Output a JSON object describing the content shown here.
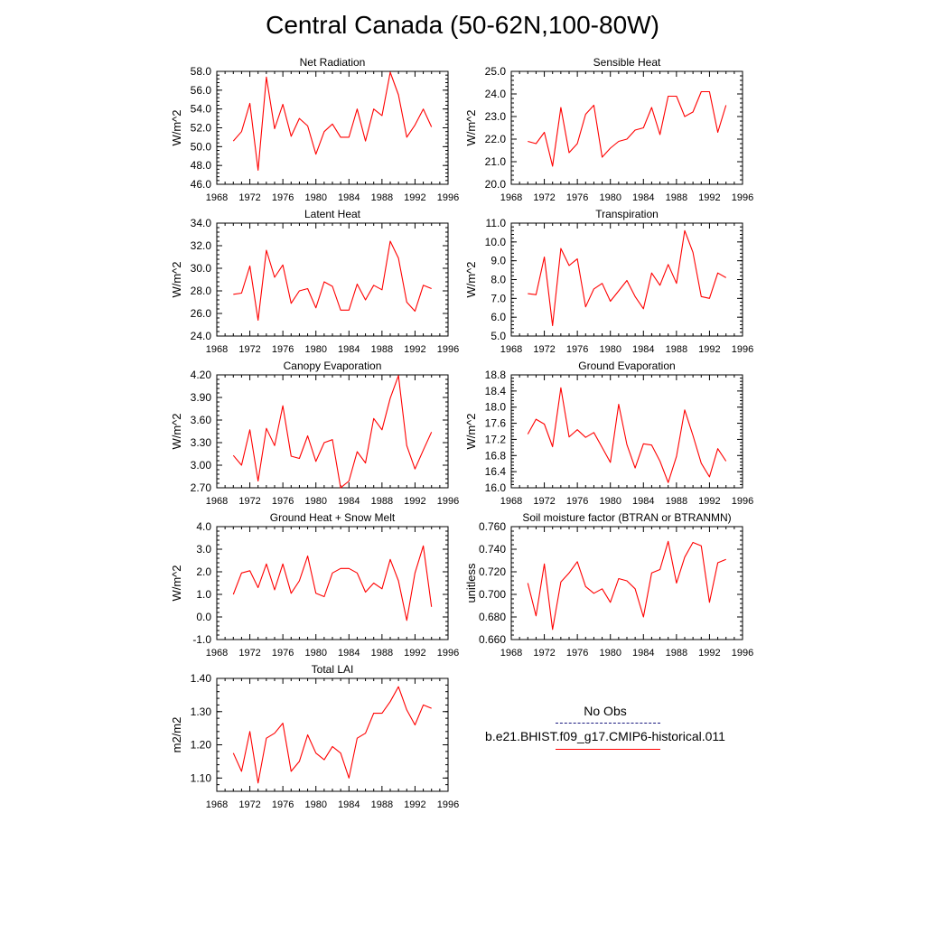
{
  "title": "Central Canada (50-62N,100-80W)",
  "legend": {
    "entries": [
      {
        "label": "No Obs",
        "color": "#1a1a80",
        "style": "dashed"
      },
      {
        "label": "b.e21.BHIST.f09_g17.CMIP6-historical.011",
        "color": "#ff0000",
        "style": "solid"
      }
    ]
  },
  "chart_data": [
    {
      "type": "line",
      "title": "Net Radiation",
      "ylabel": "W/m^2",
      "xlim": [
        1968,
        1996
      ],
      "xticks": [
        "1968",
        "1972",
        "1976",
        "1980",
        "1984",
        "1988",
        "1992",
        "1996"
      ],
      "ylim": [
        46,
        58
      ],
      "yticks": [
        "46.0",
        "48.0",
        "50.0",
        "52.0",
        "54.0",
        "56.0",
        "58.0"
      ],
      "x": [
        1970,
        1971,
        1972,
        1973,
        1974,
        1975,
        1976,
        1977,
        1978,
        1979,
        1980,
        1981,
        1982,
        1983,
        1984,
        1985,
        1986,
        1987,
        1988,
        1989,
        1990,
        1991,
        1992,
        1993,
        1994
      ],
      "series": [
        {
          "color": "#ff0000",
          "values": [
            50.6,
            51.6,
            54.6,
            47.5,
            57.4,
            51.9,
            54.5,
            51.1,
            53.0,
            52.2,
            49.2,
            51.6,
            52.4,
            51.0,
            51.0,
            54.0,
            50.6,
            54.0,
            53.3,
            57.9,
            55.5,
            51.0,
            52.3,
            54.0,
            52.1
          ]
        }
      ]
    },
    {
      "type": "line",
      "title": "Sensible Heat",
      "ylabel": "W/m^2",
      "xlim": [
        1968,
        1996
      ],
      "xticks": [
        "1968",
        "1972",
        "1976",
        "1980",
        "1984",
        "1988",
        "1992",
        "1996"
      ],
      "ylim": [
        20,
        25
      ],
      "yticks": [
        "20.0",
        "21.0",
        "22.0",
        "23.0",
        "24.0",
        "25.0"
      ],
      "x": [
        1970,
        1971,
        1972,
        1973,
        1974,
        1975,
        1976,
        1977,
        1978,
        1979,
        1980,
        1981,
        1982,
        1983,
        1984,
        1985,
        1986,
        1987,
        1988,
        1989,
        1990,
        1991,
        1992,
        1993,
        1994
      ],
      "series": [
        {
          "color": "#ff0000",
          "values": [
            21.9,
            21.8,
            22.3,
            20.8,
            23.4,
            21.4,
            21.8,
            23.1,
            23.5,
            21.2,
            21.6,
            21.9,
            22.0,
            22.4,
            22.5,
            23.4,
            22.2,
            23.9,
            23.9,
            23.0,
            23.2,
            24.1,
            24.1,
            22.3,
            23.5
          ]
        }
      ]
    },
    {
      "type": "line",
      "title": "Latent Heat",
      "ylabel": "W/m^2",
      "xlim": [
        1968,
        1996
      ],
      "xticks": [
        "1968",
        "1972",
        "1976",
        "1980",
        "1984",
        "1988",
        "1992",
        "1996"
      ],
      "ylim": [
        24,
        34
      ],
      "yticks": [
        "24.0",
        "26.0",
        "28.0",
        "30.0",
        "32.0",
        "34.0"
      ],
      "x": [
        1970,
        1971,
        1972,
        1973,
        1974,
        1975,
        1976,
        1977,
        1978,
        1979,
        1980,
        1981,
        1982,
        1983,
        1984,
        1985,
        1986,
        1987,
        1988,
        1989,
        1990,
        1991,
        1992,
        1993,
        1994
      ],
      "series": [
        {
          "color": "#ff0000",
          "values": [
            27.7,
            27.8,
            30.2,
            25.4,
            31.6,
            29.2,
            30.3,
            26.9,
            28.0,
            28.2,
            26.5,
            28.8,
            28.4,
            26.3,
            26.3,
            28.6,
            27.2,
            28.5,
            28.1,
            32.4,
            30.9,
            27.0,
            26.2,
            28.5,
            28.2
          ]
        }
      ]
    },
    {
      "type": "line",
      "title": "Transpiration",
      "ylabel": "W/m^2",
      "xlim": [
        1968,
        1996
      ],
      "xticks": [
        "1968",
        "1972",
        "1976",
        "1980",
        "1984",
        "1988",
        "1992",
        "1996"
      ],
      "ylim": [
        5,
        11
      ],
      "yticks": [
        "5.0",
        "6.0",
        "7.0",
        "8.0",
        "9.0",
        "10.0",
        "11.0"
      ],
      "x": [
        1970,
        1971,
        1972,
        1973,
        1974,
        1975,
        1976,
        1977,
        1978,
        1979,
        1980,
        1981,
        1982,
        1983,
        1984,
        1985,
        1986,
        1987,
        1988,
        1989,
        1990,
        1991,
        1992,
        1993,
        1994
      ],
      "series": [
        {
          "color": "#ff0000",
          "values": [
            7.25,
            7.2,
            9.2,
            5.55,
            9.65,
            8.75,
            9.1,
            6.55,
            7.5,
            7.8,
            6.85,
            7.4,
            7.95,
            7.1,
            6.45,
            8.35,
            7.7,
            8.8,
            7.8,
            10.6,
            9.45,
            7.1,
            7.0,
            8.35,
            8.1
          ]
        }
      ]
    },
    {
      "type": "line",
      "title": "Canopy Evaporation",
      "ylabel": "W/m^2",
      "xlim": [
        1968,
        1996
      ],
      "xticks": [
        "1968",
        "1972",
        "1976",
        "1980",
        "1984",
        "1988",
        "1992",
        "1996"
      ],
      "ylim": [
        2.7,
        4.2
      ],
      "yticks": [
        "2.70",
        "3.00",
        "3.30",
        "3.60",
        "3.90",
        "4.20"
      ],
      "x": [
        1970,
        1971,
        1972,
        1973,
        1974,
        1975,
        1976,
        1977,
        1978,
        1979,
        1980,
        1981,
        1982,
        1983,
        1984,
        1985,
        1986,
        1987,
        1988,
        1989,
        1990,
        1991,
        1992,
        1993,
        1994
      ],
      "series": [
        {
          "color": "#ff0000",
          "values": [
            3.13,
            3.0,
            3.47,
            2.79,
            3.49,
            3.26,
            3.79,
            3.12,
            3.09,
            3.39,
            3.05,
            3.3,
            3.34,
            2.7,
            2.79,
            3.18,
            3.03,
            3.62,
            3.47,
            3.89,
            4.19,
            3.26,
            2.95,
            3.2,
            3.44
          ]
        }
      ]
    },
    {
      "type": "line",
      "title": "Ground Evaporation",
      "ylabel": "W/m^2",
      "xlim": [
        1968,
        1996
      ],
      "xticks": [
        "1968",
        "1972",
        "1976",
        "1980",
        "1984",
        "1988",
        "1992",
        "1996"
      ],
      "ylim": [
        16.0,
        18.8
      ],
      "yticks": [
        "16.0",
        "16.4",
        "16.8",
        "17.2",
        "17.6",
        "18.0",
        "18.4",
        "18.8"
      ],
      "x": [
        1970,
        1971,
        1972,
        1973,
        1974,
        1975,
        1976,
        1977,
        1978,
        1979,
        1980,
        1981,
        1982,
        1983,
        1984,
        1985,
        1986,
        1987,
        1988,
        1989,
        1990,
        1991,
        1992,
        1993,
        1994
      ],
      "series": [
        {
          "color": "#ff0000",
          "values": [
            17.33,
            17.7,
            17.58,
            17.02,
            18.48,
            17.26,
            17.44,
            17.25,
            17.37,
            17.0,
            16.63,
            18.07,
            17.07,
            16.49,
            17.09,
            17.06,
            16.66,
            16.13,
            16.78,
            17.93,
            17.3,
            16.61,
            16.27,
            16.97,
            16.66
          ]
        }
      ]
    },
    {
      "type": "line",
      "title": "Ground Heat + Snow Melt",
      "ylabel": "W/m^2",
      "xlim": [
        1968,
        1996
      ],
      "xticks": [
        "1968",
        "1972",
        "1976",
        "1980",
        "1984",
        "1988",
        "1992",
        "1996"
      ],
      "ylim": [
        -1,
        4
      ],
      "yticks": [
        "-1.0",
        "0.0",
        "1.0",
        "2.0",
        "3.0",
        "4.0"
      ],
      "x": [
        1970,
        1971,
        1972,
        1973,
        1974,
        1975,
        1976,
        1977,
        1978,
        1979,
        1980,
        1981,
        1982,
        1983,
        1984,
        1985,
        1986,
        1987,
        1988,
        1989,
        1990,
        1991,
        1992,
        1993,
        1994
      ],
      "series": [
        {
          "color": "#ff0000",
          "values": [
            1.0,
            1.95,
            2.05,
            1.3,
            2.35,
            1.2,
            2.35,
            1.05,
            1.6,
            2.7,
            1.05,
            0.9,
            1.95,
            2.15,
            2.15,
            1.95,
            1.1,
            1.5,
            1.25,
            2.55,
            1.6,
            -0.15,
            1.95,
            3.15,
            0.45
          ]
        }
      ]
    },
    {
      "type": "line",
      "title": "Soil moisture factor (BTRAN or BTRANMN)",
      "ylabel": "unitless",
      "xlim": [
        1968,
        1996
      ],
      "xticks": [
        "1968",
        "1972",
        "1976",
        "1980",
        "1984",
        "1988",
        "1992",
        "1996"
      ],
      "ylim": [
        0.66,
        0.76
      ],
      "yticks": [
        "0.660",
        "0.680",
        "0.700",
        "0.720",
        "0.740",
        "0.760"
      ],
      "x": [
        1970,
        1971,
        1972,
        1973,
        1974,
        1975,
        1976,
        1977,
        1978,
        1979,
        1980,
        1981,
        1982,
        1983,
        1984,
        1985,
        1986,
        1987,
        1988,
        1989,
        1990,
        1991,
        1992,
        1993,
        1994
      ],
      "series": [
        {
          "color": "#ff0000",
          "values": [
            0.71,
            0.681,
            0.727,
            0.669,
            0.711,
            0.719,
            0.729,
            0.707,
            0.701,
            0.705,
            0.693,
            0.714,
            0.712,
            0.705,
            0.68,
            0.719,
            0.722,
            0.747,
            0.71,
            0.733,
            0.746,
            0.743,
            0.693,
            0.728,
            0.731
          ]
        }
      ]
    },
    {
      "type": "line",
      "title": "Total LAI",
      "ylabel": "m2/m2",
      "xlim": [
        1968,
        1996
      ],
      "xticks": [
        "1968",
        "1972",
        "1976",
        "1980",
        "1984",
        "1988",
        "1992",
        "1996"
      ],
      "ylim": [
        1.06,
        1.4
      ],
      "yticks": [
        "1.10",
        "1.20",
        "1.30",
        "1.40"
      ],
      "x": [
        1970,
        1971,
        1972,
        1973,
        1974,
        1975,
        1976,
        1977,
        1978,
        1979,
        1980,
        1981,
        1982,
        1983,
        1984,
        1985,
        1986,
        1987,
        1988,
        1989,
        1990,
        1991,
        1992,
        1993,
        1994
      ],
      "series": [
        {
          "color": "#ff0000",
          "values": [
            1.175,
            1.12,
            1.24,
            1.085,
            1.22,
            1.235,
            1.265,
            1.12,
            1.15,
            1.23,
            1.175,
            1.155,
            1.195,
            1.175,
            1.1,
            1.22,
            1.235,
            1.295,
            1.295,
            1.33,
            1.375,
            1.305,
            1.26,
            1.32,
            1.31
          ]
        }
      ]
    }
  ]
}
